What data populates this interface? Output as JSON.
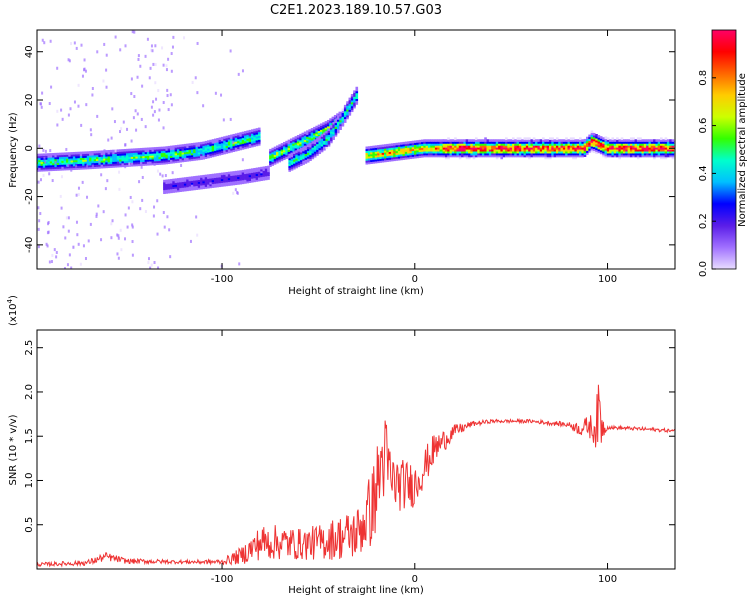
{
  "title": "C2E1.2023.189.10.57.G03",
  "colors": {
    "snr_line": "#ee3333",
    "background": "#ffffff"
  },
  "chart_data": [
    {
      "type": "heatmap",
      "name": "spectrogram",
      "xlabel": "Height of straight line (km)",
      "ylabel": "Frequency (Hz)",
      "xlim": [
        -196,
        135
      ],
      "ylim": [
        -50,
        49
      ],
      "xticks": [
        -100,
        0,
        100
      ],
      "yticks": [
        -40,
        -20,
        0,
        20,
        40
      ],
      "colorbar": {
        "label": "Normalized spectral amplitude",
        "range": [
          0.0,
          1.0
        ],
        "ticks": [
          "0.0",
          "0.2",
          "0.4",
          "0.6",
          "0.8"
        ],
        "colors": [
          "#e8dcff",
          "#a070ff",
          "#5a1de8",
          "#0000ff",
          "#00bfff",
          "#00ffcc",
          "#33ff00",
          "#ccff00",
          "#ffcc00",
          "#ff6600",
          "#ff0000",
          "#ff0066"
        ]
      },
      "ridges": [
        {
          "x": [
            -196,
            -170,
            -150,
            -130,
            -110,
            -95,
            -80
          ],
          "y": [
            -6,
            -5,
            -4,
            -3,
            -1,
            2,
            5
          ],
          "amplitude": 0.5
        },
        {
          "x": [
            -75,
            -65,
            -55,
            -45,
            -38
          ],
          "y": [
            -4,
            0,
            4,
            8,
            12
          ],
          "amplitude": 0.55
        },
        {
          "x": [
            -65,
            -55,
            -45,
            -38,
            -30
          ],
          "y": [
            -6,
            -2,
            4,
            12,
            22
          ],
          "amplitude": 0.45
        },
        {
          "x": [
            -130,
            -110,
            -90,
            -75
          ],
          "y": [
            -16,
            -14,
            -12,
            -10
          ],
          "amplitude": 0.2
        },
        {
          "x": [
            -25,
            -15,
            -5,
            5,
            15
          ],
          "y": [
            -3,
            -2,
            -1,
            0,
            0
          ],
          "amplitude": 0.7
        },
        {
          "x": [
            15,
            40,
            60,
            80,
            88,
            92,
            100,
            135
          ],
          "y": [
            0,
            0,
            0,
            0,
            0,
            3,
            0,
            0
          ],
          "amplitude": 0.9
        }
      ]
    },
    {
      "type": "line",
      "name": "snr",
      "xlabel": "Height of straight line (km)",
      "ylabel": "SNR (10 * v/v)",
      "y_multiplier": "(x10",
      "y_multiplier_exp": "4",
      "y_multiplier_close": ")",
      "xlim": [
        -196,
        135
      ],
      "ylim": [
        0,
        2.7
      ],
      "xticks": [
        -100,
        0,
        100
      ],
      "yticks": [
        "0.5",
        "1.0",
        "1.5",
        "2.0",
        "2.5"
      ],
      "series": [
        {
          "x": [
            -196,
            -170,
            -160,
            -150,
            -120,
            -100,
            -90,
            -80,
            -70,
            -60,
            -50,
            -40,
            -30,
            -22,
            -16,
            -12,
            -8,
            -4,
            0,
            10,
            20,
            30,
            40,
            60,
            80,
            86,
            90,
            93,
            96,
            98,
            100,
            120,
            135
          ],
          "y": [
            0.05,
            0.07,
            0.14,
            0.09,
            0.08,
            0.08,
            0.15,
            0.3,
            0.3,
            0.28,
            0.3,
            0.35,
            0.4,
            0.7,
            1.3,
            1.0,
            0.95,
            0.95,
            0.95,
            1.35,
            1.55,
            1.64,
            1.67,
            1.67,
            1.63,
            1.58,
            1.62,
            1.58,
            1.75,
            1.58,
            1.6,
            1.58,
            1.56
          ],
          "noise": [
            0.02,
            0.03,
            0.05,
            0.03,
            0.02,
            0.03,
            0.1,
            0.2,
            0.2,
            0.18,
            0.2,
            0.25,
            0.3,
            0.45,
            0.55,
            0.35,
            0.3,
            0.28,
            0.25,
            0.18,
            0.08,
            0.03,
            0.02,
            0.02,
            0.03,
            0.08,
            0.12,
            0.18,
            0.45,
            0.1,
            0.02,
            0.02,
            0.02
          ]
        }
      ]
    }
  ]
}
